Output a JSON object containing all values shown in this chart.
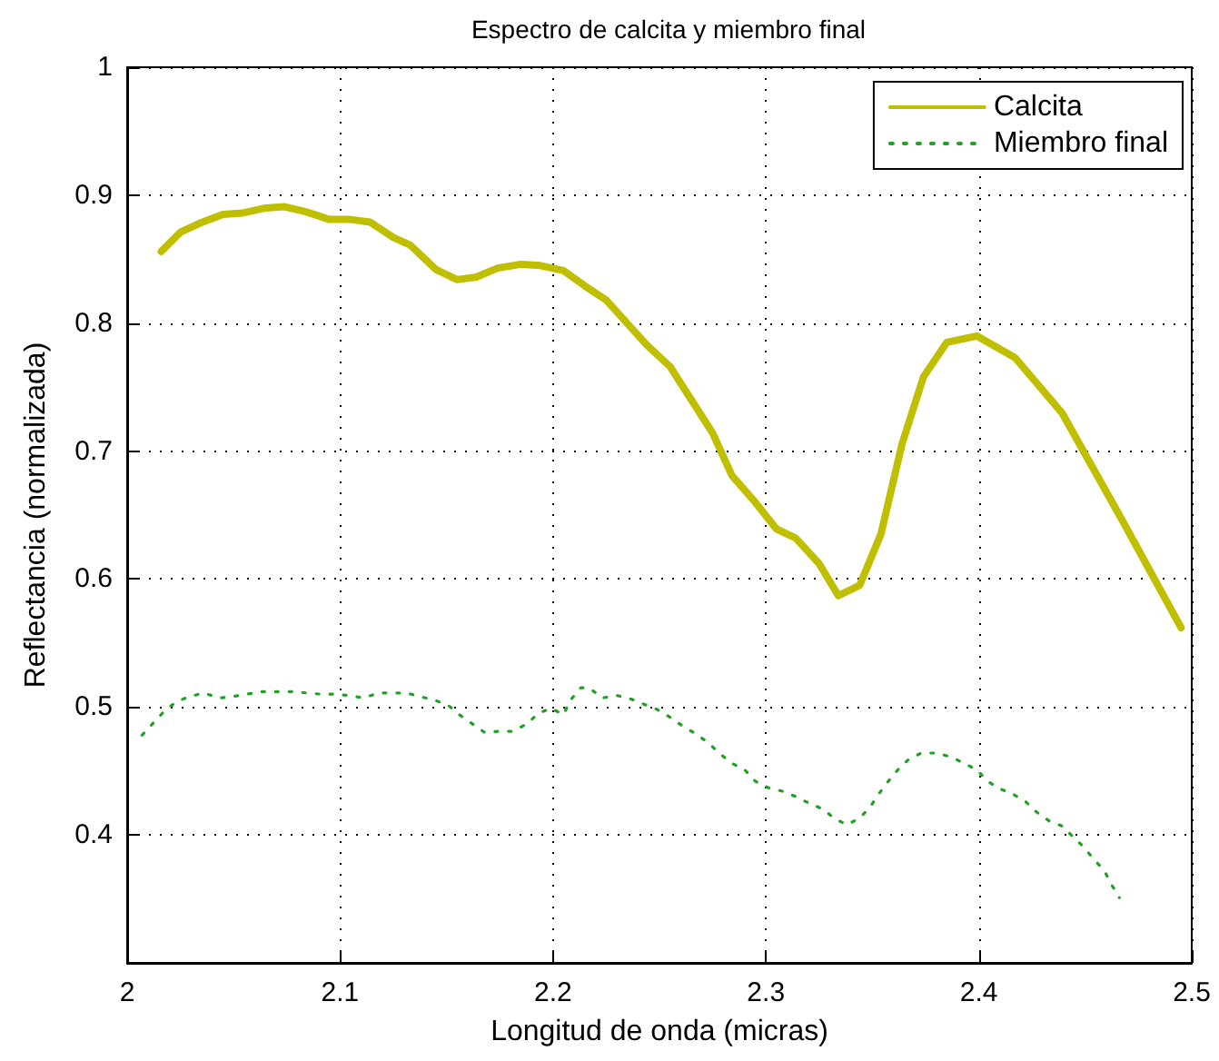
{
  "chart_data": {
    "type": "line",
    "title": "Espectro de calcita y miembro final",
    "xlabel": "Longitud de onda (micras)",
    "ylabel": "Reflectancia (normalizada)",
    "xlim": [
      2,
      2.5
    ],
    "xticks": [
      2,
      2.1,
      2.2,
      2.3,
      2.4,
      2.5
    ],
    "ylim": [
      0.3,
      1
    ],
    "yticks": [
      0.4,
      0.5,
      0.6,
      0.7,
      0.8,
      0.9,
      1
    ],
    "grid": true,
    "legend": "top right",
    "marker": "none",
    "series": [
      {
        "name": "Calcita",
        "color": "#bfbf00",
        "line_style": "solid",
        "x": [
          2.016,
          2.025,
          2.034,
          2.045,
          2.054,
          2.065,
          2.074,
          2.084,
          2.095,
          2.105,
          2.114,
          2.125,
          2.133,
          2.145,
          2.155,
          2.164,
          2.174,
          2.185,
          2.194,
          2.205,
          2.215,
          2.225,
          2.244,
          2.255,
          2.265,
          2.275,
          2.284,
          2.295,
          2.305,
          2.314,
          2.325,
          2.334,
          2.344,
          2.354,
          2.364,
          2.374,
          2.385,
          2.399,
          2.417,
          2.439,
          2.467,
          2.495
        ],
        "values": [
          0.856,
          0.871,
          0.878,
          0.885,
          0.886,
          0.89,
          0.891,
          0.887,
          0.881,
          0.881,
          0.879,
          0.867,
          0.861,
          0.842,
          0.834,
          0.836,
          0.843,
          0.846,
          0.845,
          0.841,
          0.829,
          0.818,
          0.783,
          0.766,
          0.74,
          0.714,
          0.681,
          0.66,
          0.639,
          0.632,
          0.612,
          0.587,
          0.595,
          0.635,
          0.706,
          0.758,
          0.785,
          0.79,
          0.773,
          0.73,
          0.647,
          0.562
        ]
      },
      {
        "name": "Miembro final",
        "color": "#22a022",
        "line_style": "dotted",
        "x": [
          2.007,
          2.012,
          2.017,
          2.023,
          2.029,
          2.036,
          2.043,
          2.049,
          2.056,
          2.063,
          2.07,
          2.077,
          2.084,
          2.091,
          2.097,
          2.104,
          2.111,
          2.118,
          2.125,
          2.131,
          2.138,
          2.145,
          2.151,
          2.156,
          2.162,
          2.168,
          2.174,
          2.181,
          2.188,
          2.193,
          2.199,
          2.205,
          2.208,
          2.213,
          2.217,
          2.223,
          2.23,
          2.237,
          2.243,
          2.249,
          2.255,
          2.261,
          2.267,
          2.273,
          2.278,
          2.284,
          2.29,
          2.295,
          2.301,
          2.308,
          2.314,
          2.32,
          2.327,
          2.332,
          2.338,
          2.344,
          2.349,
          2.353,
          2.357,
          2.362,
          2.367,
          2.373,
          2.38,
          2.387,
          2.393,
          2.399,
          2.404,
          2.41,
          2.416,
          2.422,
          2.427,
          2.433,
          2.439,
          2.444,
          2.449,
          2.454,
          2.459,
          2.462,
          2.466
        ],
        "values": [
          0.478,
          0.487,
          0.496,
          0.504,
          0.508,
          0.511,
          0.507,
          0.508,
          0.51,
          0.512,
          0.512,
          0.512,
          0.511,
          0.51,
          0.51,
          0.509,
          0.507,
          0.511,
          0.511,
          0.511,
          0.508,
          0.505,
          0.501,
          0.494,
          0.487,
          0.48,
          0.481,
          0.481,
          0.487,
          0.495,
          0.499,
          0.494,
          0.505,
          0.515,
          0.515,
          0.507,
          0.509,
          0.506,
          0.502,
          0.498,
          0.492,
          0.485,
          0.479,
          0.472,
          0.464,
          0.456,
          0.451,
          0.442,
          0.437,
          0.434,
          0.43,
          0.425,
          0.42,
          0.413,
          0.408,
          0.413,
          0.422,
          0.432,
          0.441,
          0.451,
          0.459,
          0.464,
          0.464,
          0.461,
          0.456,
          0.451,
          0.442,
          0.436,
          0.432,
          0.426,
          0.418,
          0.411,
          0.407,
          0.399,
          0.391,
          0.381,
          0.372,
          0.362,
          0.351
        ]
      }
    ]
  }
}
